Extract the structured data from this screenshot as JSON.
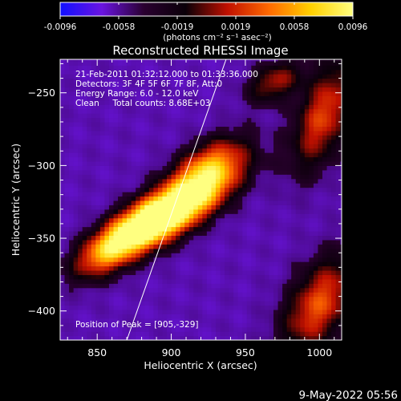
{
  "chart_data": {
    "type": "heatmap",
    "title": "Reconstructed RHESSI Image",
    "xlabel": "Heliocentric X (arcsec)",
    "ylabel": "Heliocentric Y (arcsec)",
    "xlim": [
      825,
      1015
    ],
    "ylim": [
      -420,
      -227
    ],
    "xticks": [
      850,
      900,
      950,
      1000
    ],
    "yticks": [
      -400,
      -350,
      -300,
      -250
    ],
    "colorbar": {
      "min": -0.0096,
      "max": 0.0096,
      "ticks": [
        "-0.0096",
        "-0.0058",
        "-0.0019",
        "0.0019",
        "0.0058",
        "0.0096"
      ],
      "unit_label": "(photons cm⁻² s⁻¹ asec⁻²)",
      "colormap": [
        "#1010ff",
        "#6a14e0",
        "#2a0030",
        "#0a0008",
        "#c01000",
        "#ff6a00",
        "#ffd000",
        "#ffff80"
      ]
    },
    "annotations": [
      "21-Feb-2011 01:32:12.000 to 01:33:36.000",
      "Detectors: 3F 4F 5F 6F 7F 8F, Att:0",
      "Energy Range: 6.0 - 12.0 keV",
      "Clean     Total counts: 8.68E+03"
    ],
    "peak_label": "Position of Peak = [905,-329]",
    "peak": [
      905,
      -329
    ],
    "limb_line": [
      [
        870,
        -420
      ],
      [
        937,
        -227
      ]
    ],
    "sources": [
      {
        "x": 905,
        "y": -329,
        "sigma_major": 30,
        "sigma_minor": 11,
        "angle_deg": 33,
        "amp": 1.0
      },
      {
        "x": 880,
        "y": -340,
        "sigma_major": 22,
        "sigma_minor": 10,
        "angle_deg": 33,
        "amp": 0.55
      },
      {
        "x": 925,
        "y": -300,
        "sigma_major": 20,
        "sigma_minor": 11,
        "angle_deg": 33,
        "amp": 0.45
      },
      {
        "x": 855,
        "y": -360,
        "sigma_major": 18,
        "sigma_minor": 10,
        "angle_deg": 33,
        "amp": 0.35
      },
      {
        "x": 1000,
        "y": -395,
        "sigma_major": 26,
        "sigma_minor": 14,
        "angle_deg": 60,
        "amp": 0.42
      },
      {
        "x": 1003,
        "y": -265,
        "sigma_major": 28,
        "sigma_minor": 12,
        "angle_deg": 70,
        "amp": 0.38
      },
      {
        "x": 970,
        "y": -242,
        "sigma_major": 14,
        "sigma_minor": 9,
        "angle_deg": 30,
        "amp": 0.22
      }
    ],
    "background_level": -0.35
  },
  "footer": {
    "date": "9-May-2022 05:56"
  }
}
